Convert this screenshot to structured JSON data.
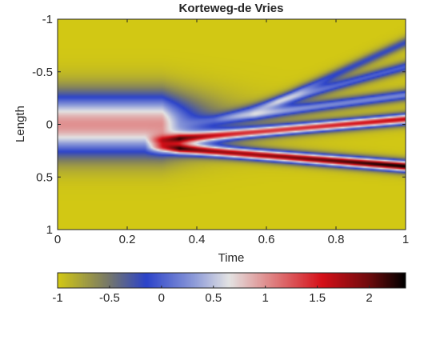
{
  "chart_data": {
    "type": "heatmap",
    "title": "Korteweg-de Vries",
    "xlabel": "Time",
    "ylabel": "Length",
    "xlim": [
      0,
      1
    ],
    "ylim": [
      -1,
      1
    ],
    "y_direction": "reversed",
    "x_ticks": [
      "0",
      "0.2",
      "0.4",
      "0.6",
      "0.8",
      "1"
    ],
    "x_tick_values": [
      0,
      0.2,
      0.4,
      0.6,
      0.8,
      1
    ],
    "y_ticks": [
      "-1",
      "-0.5",
      "0",
      "0.5",
      "1"
    ],
    "y_tick_values": [
      -1,
      -0.5,
      0,
      0.5,
      1
    ],
    "colorbar": {
      "location": "bottom",
      "range": [
        -1,
        2.35
      ],
      "ticks": [
        "-1",
        "-0.5",
        "0",
        "0.5",
        "1",
        "1.5",
        "2"
      ],
      "tick_values": [
        -1,
        -0.5,
        0,
        0.5,
        1,
        1.5,
        2
      ],
      "colormap": [
        [
          -1.0,
          "#d2c814"
        ],
        [
          -0.55,
          "#7d7d62"
        ],
        [
          -0.15,
          "#2c43c9"
        ],
        [
          0.3,
          "#8a98d8"
        ],
        [
          0.65,
          "#e3e3e3"
        ],
        [
          1.05,
          "#df8585"
        ],
        [
          1.55,
          "#d50f18"
        ],
        [
          2.0,
          "#6e0b0d"
        ],
        [
          2.35,
          "#000000"
        ]
      ]
    },
    "features": {
      "background_level": -1,
      "initial_hump": {
        "center_y": 0,
        "half_width_y": 0.42,
        "peak": 1.0,
        "until_time": 0.3
      },
      "solitons": [
        {
          "name": "lower",
          "start": [
            0.3,
            0.22
          ],
          "end": [
            1.0,
            0.4
          ],
          "peak_start": 1.4,
          "peak_end": 2.35
        },
        {
          "name": "upper",
          "start": [
            0.3,
            0.15
          ],
          "end": [
            1.0,
            -0.05
          ],
          "peak_start": 1.0,
          "peak_end": 1.65
        }
      ],
      "ripples": [
        {
          "start": [
            0.35,
            0.0
          ],
          "end": [
            1.0,
            -0.28
          ],
          "level": 0.2
        },
        {
          "start": [
            0.45,
            -0.05
          ],
          "end": [
            1.0,
            -0.55
          ],
          "level": 0.0
        },
        {
          "start": [
            0.55,
            -0.1
          ],
          "end": [
            1.0,
            -0.78
          ],
          "level": -0.2
        }
      ]
    }
  }
}
